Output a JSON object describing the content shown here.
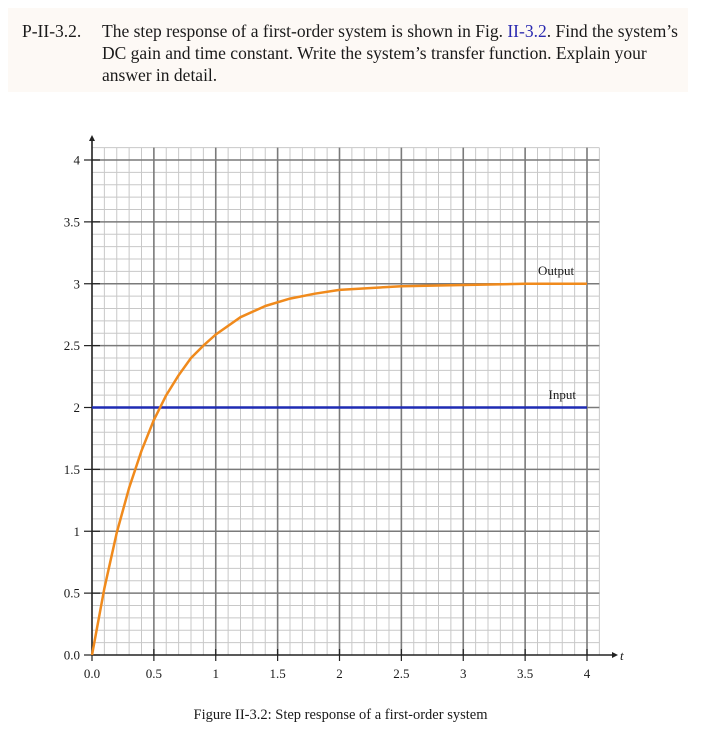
{
  "problem": {
    "label": "P-II-3.2.",
    "text_before_ref": "The step response of a first-order system is shown in Fig.",
    "figure_ref": "II-3.2",
    "text_after_ref": ". Find the system’s DC gain and time constant. Write the system’s transfer function. Explain your answer in detail."
  },
  "figure": {
    "caption": "Figure II-3.2: Step response of a first-order system"
  },
  "colors": {
    "output": "#f08a1c",
    "input": "#1f2bb3",
    "major_grid": "#7a7a7a",
    "minor_grid": "#c8c8c8",
    "axis": "#222222",
    "figure_ref": "#2a2ab0"
  },
  "chart_data": {
    "type": "line",
    "title": "Step response of a first-order system",
    "xlabel": "t",
    "ylabel": "",
    "xlim": [
      0,
      4.1
    ],
    "ylim": [
      0,
      4.1
    ],
    "grid": true,
    "x_ticks": [
      "0.0",
      "0.5",
      "1",
      "1.5",
      "2",
      "2.5",
      "3",
      "3.5",
      "4"
    ],
    "y_ticks": [
      "0.0",
      "0.5",
      "1",
      "1.5",
      "2",
      "2.5",
      "3",
      "3.5",
      "4"
    ],
    "legend": "inline labels near right end",
    "series": [
      {
        "name": "Output",
        "x": [
          0,
          0.1,
          0.2,
          0.3,
          0.4,
          0.5,
          0.6,
          0.7,
          0.8,
          0.9,
          1.0,
          1.2,
          1.4,
          1.6,
          1.8,
          2.0,
          2.5,
          3.0,
          3.5,
          4.0
        ],
        "values": [
          0,
          0.54,
          0.99,
          1.35,
          1.65,
          1.9,
          2.1,
          2.26,
          2.4,
          2.5,
          2.59,
          2.73,
          2.82,
          2.88,
          2.92,
          2.95,
          2.98,
          2.99,
          3.0,
          3.0
        ]
      },
      {
        "name": "Input",
        "x": [
          0,
          4.0
        ],
        "values": [
          2,
          2
        ]
      }
    ],
    "annotations": [
      {
        "text": "Output",
        "x": 3.75,
        "y": 3.1
      },
      {
        "text": "Input",
        "x": 3.8,
        "y": 2.1
      }
    ]
  }
}
